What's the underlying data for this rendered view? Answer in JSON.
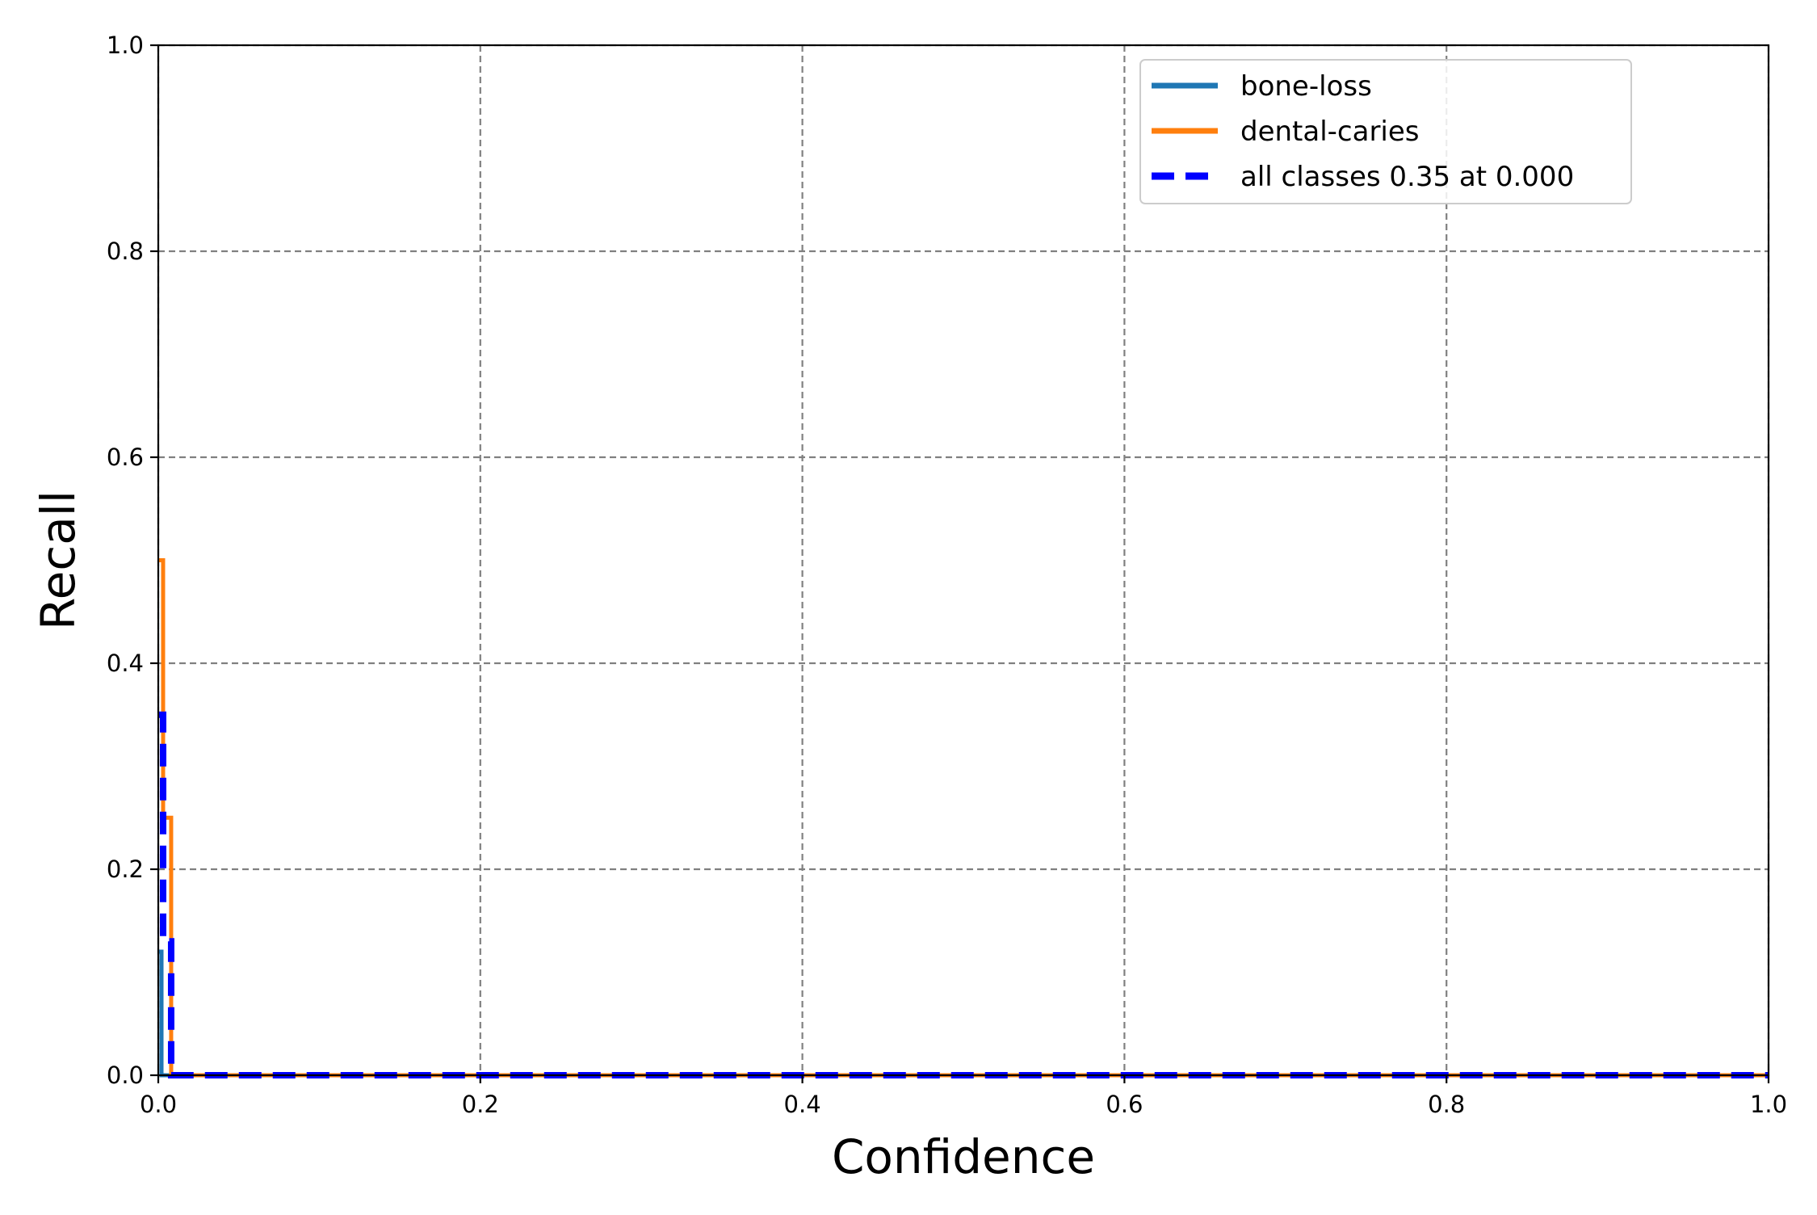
{
  "chart_data": {
    "type": "line",
    "title": "",
    "xlabel": "Confidence",
    "ylabel": "Recall",
    "xlim": [
      0,
      1
    ],
    "ylim": [
      0,
      1
    ],
    "x_ticks": [
      "0.0",
      "0.2",
      "0.4",
      "0.6",
      "0.8",
      "1.0"
    ],
    "y_ticks": [
      "0.0",
      "0.2",
      "0.4",
      "0.6",
      "0.8",
      "1.0"
    ],
    "grid": true,
    "legend_position": "top-right",
    "series": [
      {
        "name": "bone-loss",
        "color": "#1f77b4",
        "style": "solid",
        "points": [
          [
            0,
            0.12
          ],
          [
            0.002,
            0.12
          ],
          [
            0.002,
            0
          ],
          [
            1,
            0
          ]
        ]
      },
      {
        "name": "dental-caries",
        "color": "#ff7f0e",
        "style": "solid",
        "points": [
          [
            0,
            0.5
          ],
          [
            0.003,
            0.5
          ],
          [
            0.003,
            0.25
          ],
          [
            0.008,
            0.25
          ],
          [
            0.008,
            0
          ],
          [
            1,
            0
          ]
        ]
      },
      {
        "name": "all classes 0.35 at 0.000",
        "color": "#0000ff",
        "style": "dashed",
        "points": [
          [
            0,
            0.35
          ],
          [
            0.003,
            0.35
          ],
          [
            0.003,
            0.13
          ],
          [
            0.008,
            0.13
          ],
          [
            0.008,
            0
          ],
          [
            1,
            0
          ]
        ]
      }
    ]
  }
}
